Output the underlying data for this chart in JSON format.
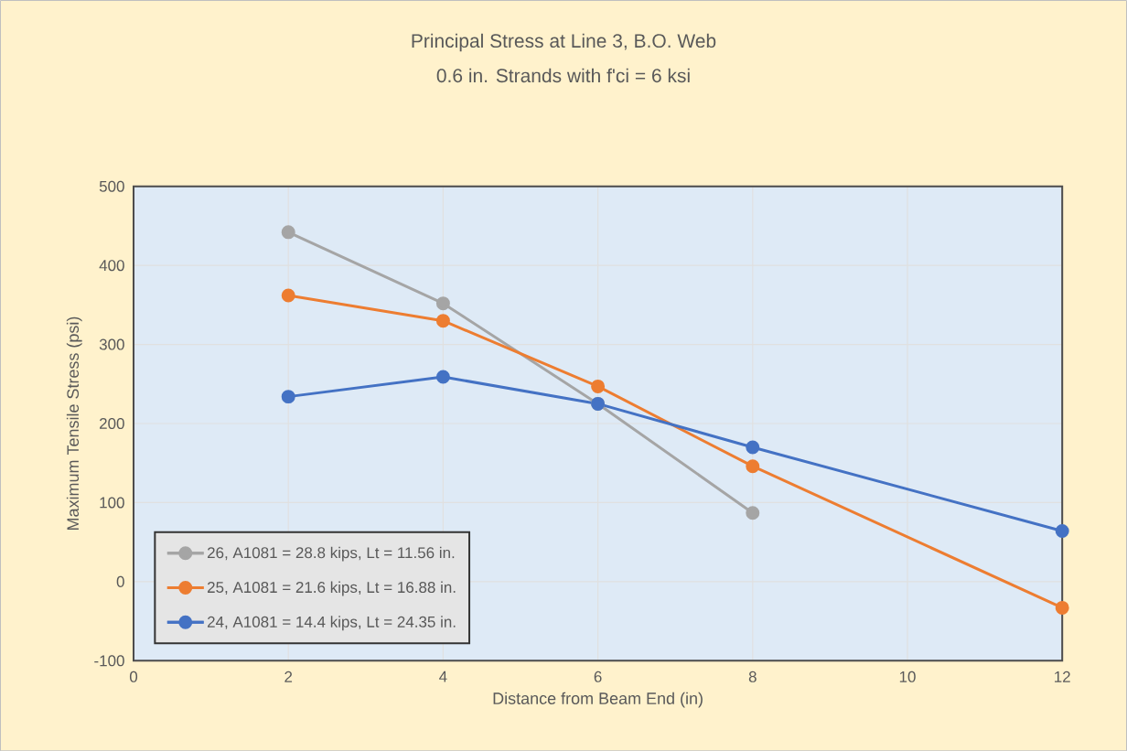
{
  "chart_data": {
    "type": "line",
    "title": "Principal Stress at Line 3, B.O. Web",
    "subtitle": "0.6 in. Strands with f'ci = 6 ksi",
    "xlabel": "Distance from Beam End (in)",
    "ylabel": "Maximum Tensile Stress (psi)",
    "x": [
      2,
      4,
      6,
      8,
      12
    ],
    "series": [
      {
        "name": "26, A1081 = 28.8 kips, Lt = 11.56 in.",
        "color": "#a5a5a5",
        "values": [
          442,
          352,
          225,
          87,
          null
        ]
      },
      {
        "name": "25, A1081 = 21.6 kips, Lt = 16.88 in.",
        "color": "#ed7d31",
        "values": [
          362,
          330,
          247,
          146,
          -33
        ]
      },
      {
        "name": "24, A1081 = 14.4 kips, Lt = 24.35 in.",
        "color": "#4472c4",
        "values": [
          234,
          259,
          225,
          170,
          64
        ]
      }
    ],
    "xlim": [
      0,
      12
    ],
    "xticks": [
      0,
      2,
      4,
      6,
      8,
      10,
      12
    ],
    "ylim": [
      -100,
      500
    ],
    "yticks": [
      -100,
      0,
      100,
      200,
      300,
      400,
      500
    ],
    "grid": true,
    "legend": "bottom left",
    "marker": "circle",
    "line_style": "solid"
  }
}
